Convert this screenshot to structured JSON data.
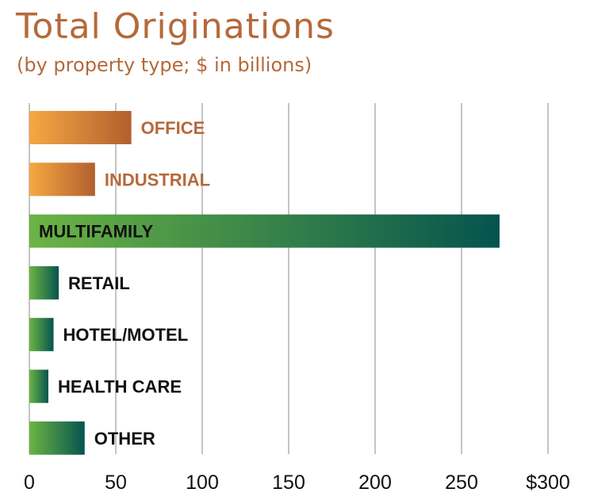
{
  "chart_data": {
    "type": "bar",
    "orientation": "horizontal",
    "title": "Total Originations",
    "subtitle": "(by property type; $ in billions)",
    "categories": [
      "OFFICE",
      "INDUSTRIAL",
      "MULTIFAMILY",
      "RETAIL",
      "HOTEL/MOTEL",
      "HEALTH CARE",
      "OTHER"
    ],
    "values": [
      59,
      38,
      272,
      17,
      14,
      11,
      32
    ],
    "xlim": [
      0,
      300
    ],
    "xticks": [
      "0",
      "50",
      "100",
      "150",
      "200",
      "250",
      "$300"
    ],
    "grid": "vertical",
    "legend": "none",
    "label_placement": [
      "outside",
      "outside",
      "inside",
      "outside",
      "outside",
      "outside",
      "outside"
    ],
    "colors": {
      "title": "#b5693a",
      "orange_start": "#f6a843",
      "orange_end": "#b1602d",
      "orange_label": "#b5693a",
      "green_start": "#6cb444",
      "green_end": "#05544e",
      "green_label": "#111111",
      "bar_color_groups": [
        "orange",
        "orange",
        "green",
        "green",
        "green",
        "green",
        "green"
      ]
    }
  }
}
